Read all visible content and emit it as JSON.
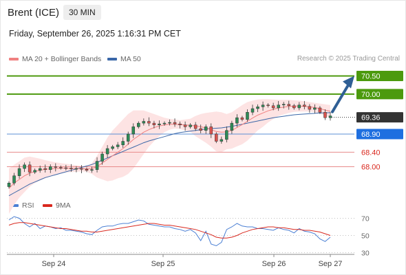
{
  "header": {
    "instrument": "Brent (ICE)",
    "timeframe": "30 MIN",
    "datetime": "Friday, September 26, 2025 1:16:31 PM CET"
  },
  "legend": {
    "ma20_label": "MA 20 + Bollinger Bands",
    "ma50_label": "MA 50",
    "credit": "Research © 2025 Trading Central",
    "rsi_label": "RSI",
    "rsi_ma_label": "9MA"
  },
  "colors": {
    "ma20": "#f08080",
    "ma50": "#3a67a8",
    "bands": "#fde3e3",
    "up_candle": "#2e8b57",
    "down_candle": "#d9534f",
    "target_line": "#4c9a0e",
    "pivot_line": "#5b8fd6",
    "support_line": "#e88a8a",
    "rsi": "#4a7fd4",
    "rsi_ma": "#d9281e",
    "arrow": "#2f5f95",
    "last_price_box": "#333333"
  },
  "chart_data": {
    "type": "candlestick",
    "x_labels": [
      "Sep 24",
      "Sep 25",
      "Sep 26",
      "Sep 27"
    ],
    "price_ylim": [
      67.1,
      70.85
    ],
    "levels": [
      {
        "value": 70.5,
        "label": "70.50",
        "role": "target"
      },
      {
        "value": 70.0,
        "label": "70.00",
        "role": "target"
      },
      {
        "value": 68.9,
        "label": "68.90",
        "role": "pivot"
      },
      {
        "value": 68.4,
        "label": "68.40",
        "role": "support"
      },
      {
        "value": 68.0,
        "label": "68.00",
        "role": "support"
      }
    ],
    "last_price": {
      "value": 69.36,
      "label": "69.36"
    },
    "arrow": {
      "from": 69.36,
      "to": 70.5,
      "direction": "up"
    },
    "closes": [
      67.55,
      67.75,
      67.95,
      68.05,
      67.85,
      67.9,
      67.95,
      67.92,
      68.0,
      67.98,
      67.97,
      67.96,
      67.94,
      67.95,
      67.93,
      67.9,
      67.92,
      68.15,
      68.35,
      68.5,
      68.55,
      68.6,
      68.7,
      68.9,
      69.1,
      69.2,
      69.25,
      69.2,
      69.15,
      69.18,
      69.2,
      69.22,
      69.18,
      69.15,
      69.1,
      69.15,
      69.05,
      69.0,
      69.1,
      68.9,
      68.7,
      68.75,
      69.0,
      69.2,
      69.35,
      69.3,
      69.5,
      69.6,
      69.65,
      69.7,
      69.68,
      69.62,
      69.7,
      69.72,
      69.68,
      69.62,
      69.7,
      69.66,
      69.58,
      69.62,
      69.5,
      69.35,
      69.4
    ],
    "ma20": [
      67.4,
      67.55,
      67.65,
      67.75,
      67.82,
      67.87,
      67.9,
      67.93,
      67.94,
      67.95,
      67.96,
      67.96,
      67.95,
      67.95,
      67.95,
      67.94,
      67.95,
      68.0,
      68.1,
      68.2,
      68.3,
      68.4,
      68.5,
      68.62,
      68.75,
      68.85,
      68.95,
      69.02,
      69.08,
      69.12,
      69.15,
      69.17,
      69.17,
      69.16,
      69.15,
      69.14,
      69.12,
      69.1,
      69.07,
      69.02,
      68.97,
      68.95,
      68.96,
      69.0,
      69.08,
      69.16,
      69.25,
      69.34,
      69.42,
      69.48,
      69.54,
      69.58,
      69.62,
      69.64,
      69.66,
      69.67,
      69.67,
      69.66,
      69.65,
      69.63,
      69.6,
      69.56,
      69.53
    ],
    "bb_upper": [
      67.95,
      68.05,
      68.15,
      68.25,
      68.28,
      68.25,
      68.22,
      68.18,
      68.15,
      68.12,
      68.1,
      68.08,
      68.06,
      68.04,
      68.02,
      68.02,
      68.1,
      68.3,
      68.55,
      68.8,
      69.0,
      69.15,
      69.3,
      69.45,
      69.55,
      69.55,
      69.55,
      69.5,
      69.45,
      69.4,
      69.35,
      69.32,
      69.3,
      69.28,
      69.3,
      69.32,
      69.4,
      69.45,
      69.48,
      69.5,
      69.52,
      69.5,
      69.45,
      69.5,
      69.6,
      69.7,
      69.78,
      69.82,
      69.85,
      69.86,
      69.86,
      69.85,
      69.84,
      69.84,
      69.84,
      69.83,
      69.82,
      69.8,
      69.78,
      69.76,
      69.74,
      69.72,
      69.7
    ],
    "bb_lower": [
      66.7,
      66.95,
      67.15,
      67.3,
      67.45,
      67.55,
      67.62,
      67.68,
      67.73,
      67.78,
      67.82,
      67.84,
      67.85,
      67.86,
      67.87,
      67.86,
      67.8,
      67.7,
      67.65,
      67.6,
      67.62,
      67.68,
      67.72,
      67.8,
      67.95,
      68.15,
      68.35,
      68.55,
      68.7,
      68.84,
      68.95,
      69.02,
      69.05,
      69.04,
      69.0,
      68.96,
      68.84,
      68.75,
      68.66,
      68.55,
      68.42,
      68.4,
      68.48,
      68.5,
      68.56,
      68.62,
      68.72,
      68.86,
      69.0,
      69.1,
      69.22,
      69.31,
      69.4,
      69.44,
      69.48,
      69.51,
      69.52,
      69.52,
      69.52,
      69.5,
      69.46,
      69.4,
      69.36
    ],
    "ma50": [
      67.2,
      67.28,
      67.36,
      67.44,
      67.52,
      67.58,
      67.64,
      67.7,
      67.74,
      67.78,
      67.82,
      67.86,
      67.9,
      67.94,
      67.98,
      68.02,
      68.06,
      68.12,
      68.18,
      68.24,
      68.3,
      68.36,
      68.42,
      68.48,
      68.54,
      68.6,
      68.66,
      68.71,
      68.75,
      68.79,
      68.83,
      68.87,
      68.91,
      68.94,
      68.96,
      68.98,
      69.0,
      69.02,
      69.04,
      69.05,
      69.06,
      69.07,
      69.09,
      69.11,
      69.14,
      69.17,
      69.2,
      69.23,
      69.26,
      69.29,
      69.32,
      69.35,
      69.37,
      69.39,
      69.41,
      69.43,
      69.44,
      69.45,
      69.46,
      69.47,
      69.48,
      69.48,
      69.49
    ],
    "rsi_ylim": [
      20,
      80
    ],
    "rsi_ticks": [
      70,
      50,
      30
    ],
    "rsi": [
      68,
      72,
      70,
      64,
      60,
      64,
      58,
      61,
      60,
      58,
      59,
      56,
      56,
      55,
      54,
      52,
      51,
      56,
      60,
      61,
      61,
      63,
      64,
      64,
      66,
      68,
      67,
      63,
      62,
      61,
      60,
      60,
      58,
      57,
      55,
      57,
      53,
      44,
      55,
      40,
      38,
      42,
      57,
      60,
      64,
      61,
      60,
      60,
      58,
      58,
      57,
      56,
      59,
      57,
      56,
      53,
      58,
      55,
      54,
      52,
      46,
      43,
      48
    ],
    "rsi_ma": [
      62,
      64,
      65,
      65,
      64,
      63,
      62,
      61,
      60,
      59,
      58,
      58,
      57,
      56,
      55,
      55,
      54,
      54,
      55,
      56,
      57,
      58,
      59,
      60,
      61,
      62,
      63,
      64,
      64,
      63,
      62,
      62,
      61,
      60,
      59,
      58,
      57,
      55,
      53,
      51,
      48,
      47,
      47,
      48,
      50,
      53,
      55,
      57,
      58,
      59,
      60,
      60,
      59,
      59,
      58,
      57,
      57,
      56,
      56,
      55,
      54,
      52,
      50
    ]
  }
}
